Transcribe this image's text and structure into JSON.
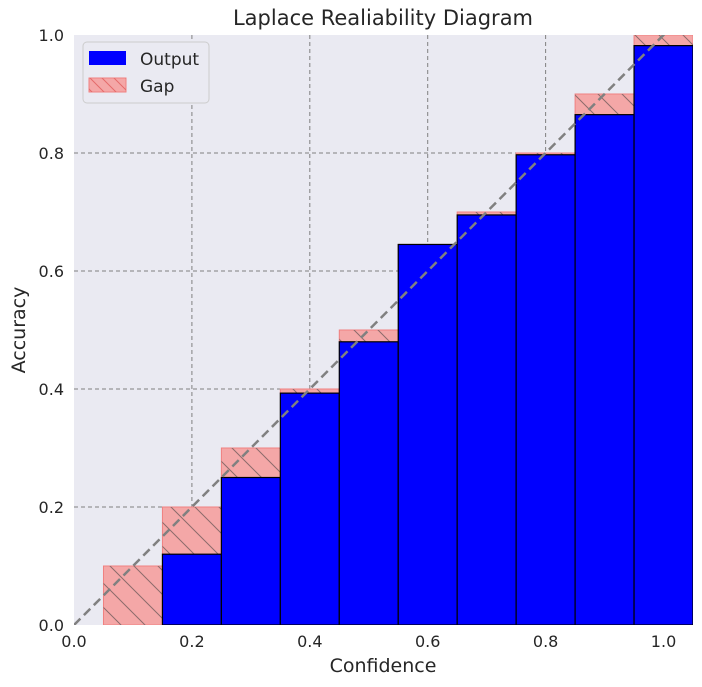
{
  "chart_data": {
    "type": "bar",
    "title": "Laplace Realiability Diagram",
    "xlabel": "Confidence",
    "ylabel": "Accuracy",
    "xlim": [
      0.0,
      1.05
    ],
    "ylim": [
      0.0,
      1.0
    ],
    "xticks": [
      "0.0",
      "0.2",
      "0.4",
      "0.6",
      "0.8",
      "1.0"
    ],
    "yticks": [
      "0.0",
      "0.2",
      "0.4",
      "0.6",
      "0.8",
      "1.0"
    ],
    "grid": true,
    "legend_position": "top-left",
    "bin_centers": [
      0.1,
      0.2,
      0.3,
      0.4,
      0.5,
      0.6,
      0.7,
      0.8,
      0.9,
      1.0
    ],
    "bin_width": 0.1,
    "series": [
      {
        "name": "Output",
        "color": "#0000ff",
        "values": [
          0.0,
          0.12,
          0.25,
          0.393,
          0.48,
          0.645,
          0.695,
          0.797,
          0.865,
          0.982
        ]
      },
      {
        "name": "Gap",
        "color": "#f08080",
        "hatch": "\\",
        "values": [
          0.1,
          0.2,
          0.3,
          0.4,
          0.5,
          0.6,
          0.7,
          0.8,
          0.9,
          1.0
        ]
      }
    ],
    "diagonal": {
      "style": "dashed",
      "color": "#808080"
    }
  }
}
